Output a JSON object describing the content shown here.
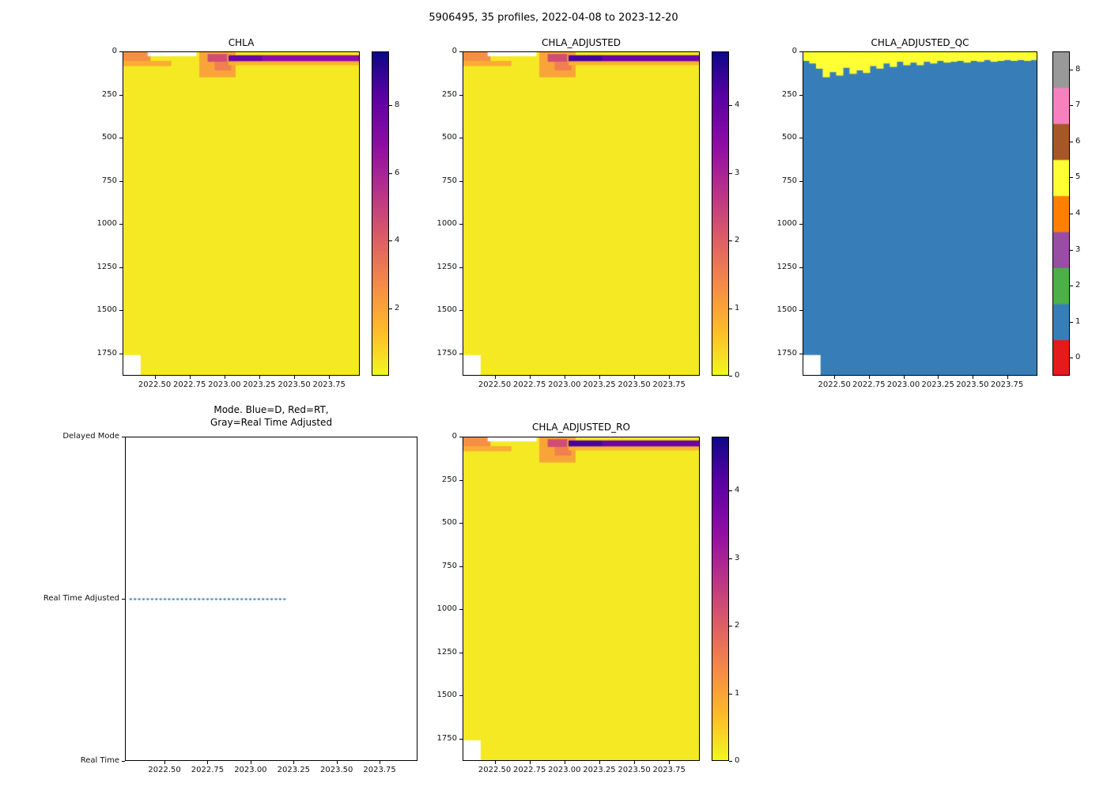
{
  "figure": {
    "suptitle": "5906495, 35 profiles, 2022-04-08 to 2023-12-20",
    "background": "#ffffff",
    "n_profiles": 35,
    "date_start": "2022-04-08",
    "date_end": "2023-12-20"
  },
  "axes_common": {
    "x_range": [
      2022.27,
      2023.97
    ],
    "x_tick_values": [
      2022.5,
      2022.75,
      2023.0,
      2023.25,
      2023.5,
      2023.75
    ],
    "x_tick_labels": [
      "2022.50",
      "2022.75",
      "2023.00",
      "2023.25",
      "2023.50",
      "2023.75"
    ],
    "depth_range": [
      0,
      1880
    ],
    "depth_tick_values": [
      0,
      250,
      500,
      750,
      1000,
      1250,
      1500,
      1750
    ],
    "depth_tick_labels": [
      "0",
      "250",
      "500",
      "750",
      "1000",
      "1250",
      "1500",
      "1750"
    ],
    "grid": false
  },
  "colors": {
    "plasma_stops": [
      [
        0,
        "#0d0887"
      ],
      [
        0.14,
        "#5b02a3"
      ],
      [
        0.29,
        "#8f0da4"
      ],
      [
        0.43,
        "#b83289"
      ],
      [
        0.57,
        "#db5c68"
      ],
      [
        0.71,
        "#f48849"
      ],
      [
        0.86,
        "#febc2a"
      ],
      [
        1,
        "#f0f921"
      ]
    ],
    "qc_palette": [
      "#e41a1c",
      "#377eb8",
      "#4daf4a",
      "#984ea3",
      "#ff7f00",
      "#ffff33",
      "#a65628",
      "#f781bf",
      "#999999"
    ],
    "mode_line": "#1f77b4",
    "no_data": "#ffffff"
  },
  "chart_data": [
    {
      "id": "chla",
      "type": "heatmap",
      "title": "CHLA",
      "xlabel": "",
      "ylabel": "",
      "colorbar": {
        "vmin": 0,
        "vmax": 9.6,
        "tick_values": [
          2,
          4,
          6,
          8
        ],
        "tick_labels": [
          "2",
          "4",
          "6",
          "8"
        ],
        "colormap": "plasma_r",
        "discrete": false
      },
      "base_value": 0.35,
      "features": [
        {
          "x": [
            2022.27,
            2022.47
          ],
          "depth": [
            0,
            70
          ],
          "value": 2.6
        },
        {
          "x": [
            2022.27,
            2022.62
          ],
          "depth": [
            55,
            85
          ],
          "value": 1.8
        },
        {
          "x": [
            2022.82,
            2023.08
          ],
          "depth": [
            0,
            150
          ],
          "value": 2.0
        },
        {
          "x": [
            2022.88,
            2023.02
          ],
          "depth": [
            15,
            60
          ],
          "value": 4.6
        },
        {
          "x": [
            2022.93,
            2023.05
          ],
          "depth": [
            60,
            110
          ],
          "value": 3.0
        },
        {
          "x": [
            2023.03,
            2023.97
          ],
          "depth": [
            22,
            58
          ],
          "value": 6.8
        },
        {
          "x": [
            2023.03,
            2023.27
          ],
          "depth": [
            25,
            55
          ],
          "value": 7.8
        },
        {
          "x": [
            2023.03,
            2023.97
          ],
          "depth": [
            58,
            80
          ],
          "value": 1.6
        }
      ],
      "no_data": [
        {
          "x": [
            2022.45,
            2022.8
          ],
          "depth": [
            0,
            28
          ]
        },
        {
          "x": [
            2022.27,
            2022.4
          ],
          "depth": [
            1760,
            1880
          ]
        }
      ]
    },
    {
      "id": "chla_adjusted",
      "type": "heatmap",
      "title": "CHLA_ADJUSTED",
      "xlabel": "",
      "ylabel": "",
      "colorbar": {
        "vmin": 0,
        "vmax": 4.8,
        "tick_values": [
          0,
          1,
          2,
          3,
          4
        ],
        "tick_labels": [
          "0",
          "1",
          "2",
          "3",
          "4"
        ],
        "colormap": "plasma_r",
        "discrete": false
      },
      "base_value": 0.18,
      "features": [
        {
          "x": [
            2022.27,
            2022.47
          ],
          "depth": [
            0,
            70
          ],
          "value": 1.3
        },
        {
          "x": [
            2022.27,
            2022.62
          ],
          "depth": [
            55,
            85
          ],
          "value": 0.9
        },
        {
          "x": [
            2022.82,
            2023.08
          ],
          "depth": [
            0,
            150
          ],
          "value": 1.0
        },
        {
          "x": [
            2022.88,
            2023.02
          ],
          "depth": [
            15,
            60
          ],
          "value": 2.3
        },
        {
          "x": [
            2022.93,
            2023.05
          ],
          "depth": [
            60,
            110
          ],
          "value": 1.5
        },
        {
          "x": [
            2023.03,
            2023.97
          ],
          "depth": [
            22,
            58
          ],
          "value": 3.9
        },
        {
          "x": [
            2023.03,
            2023.27
          ],
          "depth": [
            25,
            55
          ],
          "value": 4.3
        },
        {
          "x": [
            2023.03,
            2023.97
          ],
          "depth": [
            58,
            80
          ],
          "value": 0.8
        }
      ],
      "no_data": [
        {
          "x": [
            2022.45,
            2022.8
          ],
          "depth": [
            0,
            28
          ]
        },
        {
          "x": [
            2022.27,
            2022.4
          ],
          "depth": [
            1760,
            1880
          ]
        }
      ]
    },
    {
      "id": "chla_adjusted_qc",
      "type": "heatmap_discrete",
      "title": "CHLA_ADJUSTED_QC",
      "xlabel": "",
      "ylabel": "",
      "colorbar": {
        "vmin": 0,
        "vmax": 8,
        "tick_values": [
          0,
          1,
          2,
          3,
          4,
          5,
          6,
          7,
          8
        ],
        "tick_labels": [
          "0",
          "1",
          "2",
          "3",
          "4",
          "5",
          "6",
          "7",
          "8"
        ],
        "colormap": "Set1",
        "discrete": true,
        "colors": [
          "#e41a1c",
          "#377eb8",
          "#4daf4a",
          "#984ea3",
          "#ff7f00",
          "#ffff33",
          "#a65628",
          "#f781bf",
          "#999999"
        ]
      },
      "body_value": 1,
      "surface_value": 5,
      "band_depths": [
        55,
        70,
        100,
        150,
        120,
        140,
        95,
        130,
        110,
        125,
        85,
        100,
        70,
        90,
        60,
        80,
        65,
        80,
        60,
        70,
        55,
        65,
        60,
        55,
        65,
        55,
        60,
        50,
        60,
        55,
        50,
        55,
        50,
        55,
        50
      ],
      "no_data": [
        {
          "x": [
            2022.27,
            2022.4
          ],
          "depth": [
            1760,
            1880
          ]
        }
      ]
    },
    {
      "id": "mode",
      "type": "line",
      "title_line1": "Mode. Blue=D, Red=RT,",
      "title_line2": "Gray=Real Time Adjusted",
      "y_categories": [
        "Real Time",
        "Real Time Adjusted",
        "Delayed Mode"
      ],
      "series": [
        {
          "name": "Real Time Adjusted segment",
          "color": "#1f77b4",
          "style": "dotted",
          "category": "Real Time Adjusted",
          "x_start": 2022.3,
          "x_end": 2023.21
        }
      ]
    },
    {
      "id": "chla_adjusted_ro",
      "type": "heatmap",
      "title": "CHLA_ADJUSTED_RO",
      "xlabel": "",
      "ylabel": "",
      "colorbar": {
        "vmin": 0,
        "vmax": 4.8,
        "tick_values": [
          0,
          1,
          2,
          3,
          4
        ],
        "tick_labels": [
          "0",
          "1",
          "2",
          "3",
          "4"
        ],
        "colormap": "plasma_r",
        "discrete": false
      },
      "base_value": 0.18,
      "features": [
        {
          "x": [
            2022.27,
            2022.47
          ],
          "depth": [
            0,
            70
          ],
          "value": 1.3
        },
        {
          "x": [
            2022.27,
            2022.62
          ],
          "depth": [
            55,
            85
          ],
          "value": 0.9
        },
        {
          "x": [
            2022.82,
            2023.08
          ],
          "depth": [
            0,
            150
          ],
          "value": 1.0
        },
        {
          "x": [
            2022.88,
            2023.02
          ],
          "depth": [
            15,
            60
          ],
          "value": 2.3
        },
        {
          "x": [
            2022.93,
            2023.05
          ],
          "depth": [
            60,
            110
          ],
          "value": 1.5
        },
        {
          "x": [
            2023.03,
            2023.97
          ],
          "depth": [
            22,
            58
          ],
          "value": 3.9
        },
        {
          "x": [
            2023.03,
            2023.27
          ],
          "depth": [
            25,
            55
          ],
          "value": 4.3
        },
        {
          "x": [
            2023.03,
            2023.97
          ],
          "depth": [
            58,
            80
          ],
          "value": 0.8
        }
      ],
      "no_data": [
        {
          "x": [
            2022.45,
            2022.8
          ],
          "depth": [
            0,
            28
          ]
        },
        {
          "x": [
            2022.27,
            2022.4
          ],
          "depth": [
            1760,
            1880
          ]
        }
      ]
    }
  ]
}
